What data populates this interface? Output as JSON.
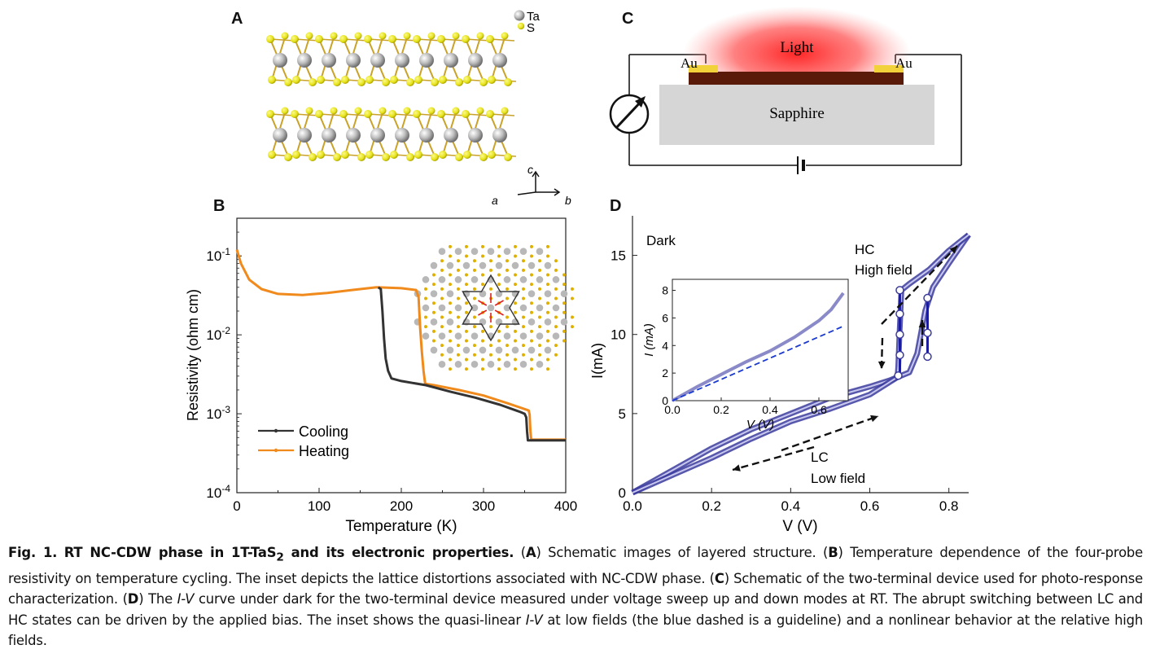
{
  "panels": {
    "a": "A",
    "b": "B",
    "c": "C",
    "d": "D"
  },
  "panel_a": {
    "legend": [
      "Ta",
      "S"
    ],
    "axes": {
      "c": "c",
      "a": "a",
      "b": "b"
    },
    "colors": {
      "ta": "#a8a8a8",
      "s": "#e6e21a",
      "bond": "#c9a227"
    }
  },
  "panel_c": {
    "light_label": "Light",
    "electrode_left": "Au",
    "electrode_right": "Au",
    "substrate_label": "Sapphire",
    "colors": {
      "light": "#ff2a2a",
      "film": "#5a1a0a",
      "electrode": "#f2d23a",
      "substrate": "#d6d6d6"
    }
  },
  "panel_d_labels": {
    "dark": "Dark",
    "hc": "HC",
    "high_field": "High field",
    "lc": "LC",
    "low_field": "Low field"
  },
  "chart_data": [
    {
      "id": "B",
      "type": "line",
      "xlabel": "Temperature (K)",
      "ylabel": "Resistivity (ohm cm)",
      "yscale": "log",
      "xlim": [
        0,
        400
      ],
      "ylim": [
        0.0001,
        0.3
      ],
      "x_ticks": [
        "0",
        "100",
        "200",
        "300",
        "400"
      ],
      "y_ticks": [
        {
          "base": "10",
          "exp": "-1",
          "value": 0.1
        },
        {
          "base": "10",
          "exp": "-2",
          "value": 0.01
        },
        {
          "base": "10",
          "exp": "-3",
          "value": 0.001
        },
        {
          "base": "10",
          "exp": "-4",
          "value": 0.0001
        }
      ],
      "legend_position": "bottom-left",
      "series": [
        {
          "name": "Cooling",
          "color": "#333333",
          "points": [
            [
              172,
              0.04
            ],
            [
              175,
              0.038
            ],
            [
              177,
              0.02
            ],
            [
              179,
              0.009
            ],
            [
              181,
              0.005
            ],
            [
              184,
              0.0035
            ],
            [
              188,
              0.0028
            ],
            [
              200,
              0.0026
            ],
            [
              230,
              0.0023
            ],
            [
              260,
              0.0019
            ],
            [
              290,
              0.0016
            ],
            [
              320,
              0.0013
            ],
            [
              345,
              0.00105
            ],
            [
              350,
              0.001
            ],
            [
              352,
              0.0009
            ],
            [
              353,
              0.0006
            ],
            [
              354,
              0.00046
            ],
            [
              400,
              0.00046
            ]
          ]
        },
        {
          "name": "Heating",
          "color": "#f08a1c",
          "points": [
            [
              0,
              0.12
            ],
            [
              5,
              0.08
            ],
            [
              15,
              0.05
            ],
            [
              30,
              0.038
            ],
            [
              50,
              0.033
            ],
            [
              80,
              0.032
            ],
            [
              110,
              0.034
            ],
            [
              140,
              0.037
            ],
            [
              170,
              0.04
            ],
            [
              200,
              0.039
            ],
            [
              218,
              0.037
            ],
            [
              221,
              0.03
            ],
            [
              223,
              0.012
            ],
            [
              225,
              0.006
            ],
            [
              227,
              0.0035
            ],
            [
              229,
              0.0024
            ],
            [
              240,
              0.0023
            ],
            [
              270,
              0.002
            ],
            [
              300,
              0.0017
            ],
            [
              330,
              0.00135
            ],
            [
              355,
              0.0011
            ],
            [
              356,
              0.00098
            ],
            [
              357,
              0.0006
            ],
            [
              358,
              0.00047
            ],
            [
              400,
              0.00047
            ]
          ]
        }
      ]
    },
    {
      "id": "D",
      "type": "scatter",
      "xlabel": "V (V)",
      "ylabel": "I(mA)",
      "xlim": [
        0,
        0.85
      ],
      "ylim": [
        0,
        17.5
      ],
      "x_ticks": [
        "0.0",
        "0.2",
        "0.4",
        "0.6",
        "0.8"
      ],
      "y_ticks": [
        "0",
        "5",
        "10",
        "15"
      ],
      "color": "#3a3a9e",
      "series": [
        {
          "name": "",
          "points": [
            [
              0,
              0
            ],
            [
              0.05,
              0.7
            ],
            [
              0.1,
              1.4
            ],
            [
              0.2,
              2.8
            ],
            [
              0.3,
              4.0
            ],
            [
              0.4,
              5.0
            ],
            [
              0.5,
              6.0
            ],
            [
              0.6,
              6.7
            ],
            [
              0.65,
              7.1
            ],
            [
              0.7,
              7.6
            ],
            [
              0.72,
              8.8
            ],
            [
              0.74,
              11.5
            ],
            [
              0.76,
              13.0
            ],
            [
              0.8,
              14.5
            ],
            [
              0.85,
              16.3
            ]
          ]
        },
        {
          "name": "",
          "points": [
            [
              0.85,
              16.3
            ],
            [
              0.8,
              15.3
            ],
            [
              0.75,
              14.1
            ],
            [
              0.7,
              13.2
            ],
            [
              0.68,
              12.8
            ],
            [
              0.675,
              10
            ],
            [
              0.672,
              8
            ],
            [
              0.67,
              7.3
            ],
            [
              0.6,
              6.2
            ],
            [
              0.5,
              5.3
            ],
            [
              0.4,
              4.5
            ],
            [
              0.3,
              3.4
            ],
            [
              0.2,
              2.2
            ],
            [
              0.1,
              1.1
            ],
            [
              0,
              0
            ]
          ]
        }
      ],
      "switch_markers": [
        [
          0.676,
          12.8
        ],
        [
          0.676,
          11.3
        ],
        [
          0.676,
          10
        ],
        [
          0.676,
          8.7
        ],
        [
          0.672,
          7.4
        ],
        [
          0.746,
          12.3
        ],
        [
          0.746,
          10.1
        ],
        [
          0.746,
          8.6
        ]
      ],
      "inset": {
        "xlabel": "V (V)",
        "ylabel": "I (mA)",
        "xlim": [
          0,
          0.72
        ],
        "ylim": [
          0,
          8.8
        ],
        "x_ticks": [
          "0.0",
          "0.2",
          "0.4",
          "0.6"
        ],
        "y_ticks": [
          "0",
          "2",
          "4",
          "6",
          "8"
        ],
        "measured": [
          [
            0,
            0
          ],
          [
            0.1,
            1.0
          ],
          [
            0.2,
            1.9
          ],
          [
            0.3,
            2.8
          ],
          [
            0.4,
            3.6
          ],
          [
            0.5,
            4.6
          ],
          [
            0.6,
            5.8
          ],
          [
            0.65,
            6.6
          ],
          [
            0.7,
            7.8
          ]
        ],
        "guideline": [
          [
            0,
            0
          ],
          [
            0.7,
            5.4
          ]
        ]
      }
    }
  ],
  "caption": {
    "fig_label": "Fig. 1.",
    "title_pre": "RT NC-CDW phase in 1T-TaS",
    "title_sub": "2",
    "title_post": " and its electronic properties.",
    "a": "A",
    "a_text": "Schematic images of layered structure.",
    "b": "B",
    "b_text": "Temperature dependence of the four-probe resistivity on temperature cycling. The inset depicts the lattice distortions associated with NC-CDW phase.",
    "c": "C",
    "c_text": "Schematic of the two-terminal device used for photo-response characterization.",
    "d": "D",
    "d_text_1": "The",
    "d_iv": "I-V",
    "d_text_2": "curve under dark for the two-terminal device measured under voltage sweep up and down modes at RT. The abrupt switching between LC and HC states can be driven by the applied bias. The inset shows the quasi-linear",
    "d_iv2": "I-V",
    "d_text_3": "at low fields (the blue dashed is a guideline) and a nonlinear behavior at the relative high fields."
  }
}
